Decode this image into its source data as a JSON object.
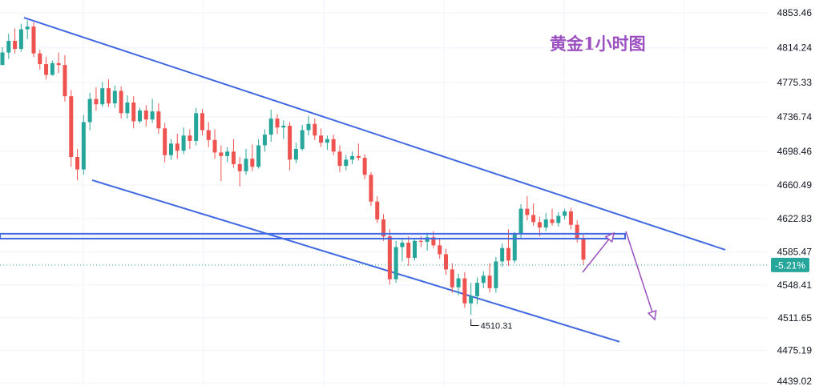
{
  "chart_data": {
    "type": "candlestick",
    "title": "黄金1小时图",
    "y_axis": {
      "ticks": [
        4853.46,
        4814.24,
        4775.33,
        4736.74,
        4698.46,
        4660.49,
        4622.83,
        4585.47,
        4548.41,
        4511.65,
        4475.19,
        "4439.02"
      ],
      "range": [
        4439.02,
        4853.46
      ],
      "position": "right"
    },
    "current_change_badge": {
      "text": "-5.21%",
      "price": 4571.0,
      "color": "#26a69a"
    },
    "low_annotation": {
      "text": "4510.31",
      "value": 4510.31
    },
    "colors": {
      "up": "#26a69a",
      "down": "#ef5350",
      "channel": "#4169e1",
      "support_zone": "#4169e1",
      "arrows": "#9b4fc0",
      "grid": "#f0f3fa"
    },
    "annotations": {
      "upper_trendline": {
        "from_price": 4848.0,
        "to_price": 4588.0
      },
      "lower_trendline": {
        "from_price": 4666.0,
        "to_price": 4485.0
      },
      "support_zone": {
        "top": 4606.0,
        "bottom": 4600.5
      },
      "projection": "brief rise to the zone, then decline toward ~4505"
    },
    "series": [
      {
        "values": [
          [
            4795,
            4815,
            4795,
            4809
          ],
          [
            4809,
            4830,
            4802,
            4822
          ],
          [
            4822,
            4836,
            4808,
            4813
          ],
          [
            4813,
            4841,
            4810,
            4835
          ],
          [
            4835,
            4845,
            4824,
            4838
          ],
          [
            4838,
            4843,
            4804,
            4808
          ],
          [
            4808,
            4812,
            4790,
            4796
          ],
          [
            4796,
            4804,
            4779,
            4784
          ],
          [
            4784,
            4800,
            4783,
            4797
          ],
          [
            4797,
            4809,
            4786,
            4795
          ],
          [
            4795,
            4806,
            4754,
            4760
          ],
          [
            4760,
            4767,
            4681,
            4692
          ],
          [
            4692,
            4701,
            4666,
            4678
          ],
          [
            4678,
            4739,
            4672,
            4731
          ],
          [
            4731,
            4764,
            4722,
            4757
          ],
          [
            4757,
            4770,
            4744,
            4751
          ],
          [
            4751,
            4776,
            4748,
            4769
          ],
          [
            4769,
            4779,
            4748,
            4752
          ],
          [
            4752,
            4772,
            4747,
            4766
          ],
          [
            4766,
            4771,
            4735,
            4741
          ],
          [
            4741,
            4761,
            4735,
            4753
          ],
          [
            4753,
            4760,
            4724,
            4732
          ],
          [
            4732,
            4747,
            4730,
            4744
          ],
          [
            4744,
            4750,
            4726,
            4734
          ],
          [
            4734,
            4757,
            4730,
            4743
          ],
          [
            4743,
            4752,
            4718,
            4724
          ],
          [
            4724,
            4730,
            4686,
            4694
          ],
          [
            4694,
            4712,
            4689,
            4707
          ],
          [
            4707,
            4718,
            4690,
            4699
          ],
          [
            4699,
            4725,
            4695,
            4716
          ],
          [
            4716,
            4723,
            4701,
            4710
          ],
          [
            4710,
            4747,
            4705,
            4741
          ],
          [
            4741,
            4746,
            4716,
            4722
          ],
          [
            4722,
            4731,
            4703,
            4711
          ],
          [
            4711,
            4723,
            4690,
            4697
          ],
          [
            4697,
            4705,
            4665,
            4693
          ],
          [
            4693,
            4703,
            4686,
            4698
          ],
          [
            4698,
            4712,
            4680,
            4684
          ],
          [
            4684,
            4692,
            4659,
            4676
          ],
          [
            4676,
            4701,
            4672,
            4690
          ],
          [
            4690,
            4706,
            4676,
            4681
          ],
          [
            4681,
            4712,
            4679,
            4705
          ],
          [
            4705,
            4723,
            4698,
            4717
          ],
          [
            4717,
            4745,
            4709,
            4735
          ],
          [
            4735,
            4740,
            4718,
            4725
          ],
          [
            4725,
            4733,
            4712,
            4727
          ],
          [
            4727,
            4731,
            4677,
            4689
          ],
          [
            4689,
            4708,
            4685,
            4701
          ],
          [
            4701,
            4728,
            4699,
            4722
          ],
          [
            4722,
            4738,
            4716,
            4729
          ],
          [
            4729,
            4735,
            4711,
            4716
          ],
          [
            4716,
            4724,
            4703,
            4708
          ],
          [
            4708,
            4716,
            4700,
            4712
          ],
          [
            4712,
            4717,
            4694,
            4698
          ],
          [
            4698,
            4705,
            4675,
            4682
          ],
          [
            4682,
            4694,
            4677,
            4689
          ],
          [
            4689,
            4698,
            4684,
            4693
          ],
          [
            4693,
            4707,
            4688,
            4691
          ],
          [
            4691,
            4695,
            4667,
            4672
          ],
          [
            4672,
            4675,
            4637,
            4642
          ],
          [
            4642,
            4648,
            4618,
            4622
          ],
          [
            4622,
            4628,
            4598,
            4603
          ],
          [
            4603,
            4611,
            4549,
            4555
          ],
          [
            4555,
            4598,
            4551,
            4591
          ],
          [
            4591,
            4600,
            4575,
            4596
          ],
          [
            4596,
            4603,
            4570,
            4579
          ],
          [
            4579,
            4601,
            4576,
            4598
          ],
          [
            4598,
            4603,
            4591,
            4597
          ],
          [
            4597,
            4607,
            4587,
            4602
          ],
          [
            4602,
            4609,
            4590,
            4593
          ],
          [
            4593,
            4600,
            4578,
            4583
          ],
          [
            4583,
            4589,
            4560,
            4566
          ],
          [
            4566,
            4573,
            4540,
            4546
          ],
          [
            4546,
            4561,
            4537,
            4556
          ],
          [
            4556,
            4563,
            4523,
            4528
          ],
          [
            4528,
            4551,
            4515,
            4536
          ],
          [
            4536,
            4557,
            4527,
            4551
          ],
          [
            4551,
            4564,
            4545,
            4559
          ],
          [
            4559,
            4573,
            4540,
            4545
          ],
          [
            4545,
            4580,
            4540,
            4575
          ],
          [
            4575,
            4595,
            4569,
            4590
          ],
          [
            4590,
            4611,
            4570,
            4576
          ],
          [
            4576,
            4608,
            4573,
            4606
          ],
          [
            4606,
            4639,
            4601,
            4634
          ],
          [
            4634,
            4648,
            4621,
            4627
          ],
          [
            4627,
            4640,
            4615,
            4619
          ],
          [
            4619,
            4625,
            4603,
            4613
          ],
          [
            4613,
            4629,
            4609,
            4622
          ],
          [
            4622,
            4634,
            4615,
            4618
          ],
          [
            4618,
            4630,
            4614,
            4626
          ],
          [
            4626,
            4634,
            4622,
            4631
          ],
          [
            4631,
            4635,
            4611,
            4616
          ],
          [
            4616,
            4621,
            4596,
            4600
          ],
          [
            4600,
            4605,
            4571,
            4577
          ]
        ]
      }
    ]
  }
}
